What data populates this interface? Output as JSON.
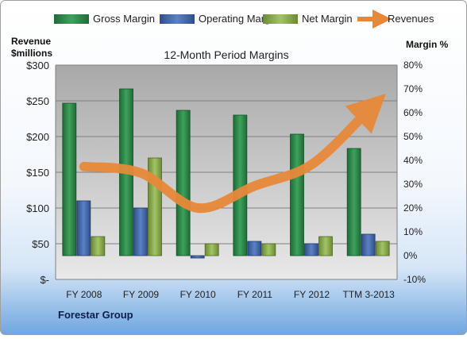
{
  "chart_data": {
    "type": "bar+line",
    "title": "12-Month Period Margins",
    "company": "Forestar Group",
    "left_axis": {
      "label_line1": "Revenue",
      "label_line2": "$millions",
      "ticks": [
        "$-",
        "$50",
        "$100",
        "$150",
        "$200",
        "$250",
        "$300"
      ],
      "range": [
        0,
        300
      ]
    },
    "right_axis": {
      "label": "Margin %",
      "ticks": [
        "-10%",
        "0%",
        "10%",
        "20%",
        "30%",
        "40%",
        "50%",
        "60%",
        "70%",
        "80%"
      ],
      "range": [
        -10,
        80
      ]
    },
    "categories": [
      "FY 2008",
      "FY 2009",
      "FY 2010",
      "FY 2011",
      "FY 2012",
      "TTM 3-2013"
    ],
    "series": [
      {
        "name": "Gross Margin",
        "axis": "right",
        "type": "bar",
        "color": "#2E8B4A",
        "values": [
          64,
          70,
          61,
          59,
          51,
          45
        ]
      },
      {
        "name": "Operating Margin",
        "axis": "right",
        "type": "bar",
        "color": "#4A6FB0",
        "values": [
          23,
          20,
          -1,
          6,
          5,
          9
        ]
      },
      {
        "name": "Net Margin",
        "axis": "right",
        "type": "bar",
        "color": "#8DB04E",
        "values": [
          8,
          41,
          5,
          5,
          8,
          6
        ]
      },
      {
        "name": "Revenues",
        "axis": "left",
        "type": "line",
        "color": "#E8893A",
        "values": [
          158,
          149,
          100,
          131,
          161,
          237
        ]
      }
    ],
    "grid": true,
    "legend_position": "top"
  }
}
